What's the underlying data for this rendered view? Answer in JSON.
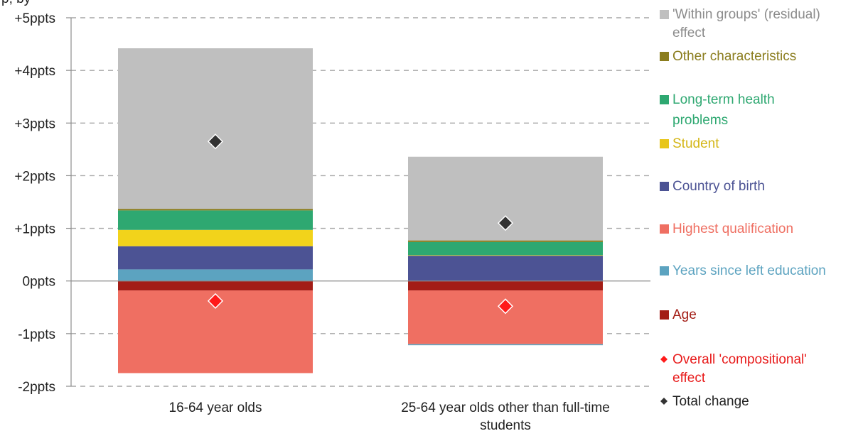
{
  "chart_data": {
    "type": "bar",
    "stacked": true,
    "ylabel": "",
    "y_unit_suffix": "ppts",
    "ylim": [
      -2,
      5
    ],
    "yticks": [
      5,
      4,
      3,
      2,
      1,
      0,
      -1,
      -2
    ],
    "ytick_labels": [
      "+5ppts",
      "+4ppts",
      "+3ppts",
      "+2ppts",
      "+1ppts",
      "0ppts",
      "-1ppts",
      "-2ppts"
    ],
    "grid": true,
    "legend_position": "right",
    "categories": [
      [
        "16-64 year olds"
      ],
      [
        "25-64 year olds other than full-time",
        "students"
      ]
    ],
    "series": [
      {
        "name": "Age",
        "color": "#a31d16",
        "values": [
          -0.18,
          -0.18
        ]
      },
      {
        "name": "Highest qualification",
        "color": "#ef6f62",
        "values": [
          -1.57,
          -1.02
        ]
      },
      {
        "name": "Years since left education",
        "color": "#5ca3c0",
        "values": [
          0.22,
          -0.02
        ]
      },
      {
        "name": "Country of birth",
        "color": "#4c5394",
        "values": [
          0.44,
          0.48
        ]
      },
      {
        "name": "Student",
        "color": "#f2d31b",
        "values": [
          0.31,
          0.01
        ]
      },
      {
        "name": "Long-term health problems",
        "color": "#2ea871",
        "values": [
          0.37,
          0.25
        ]
      },
      {
        "name": "Other characteristics",
        "color": "#8b7d1e",
        "values": [
          0.03,
          0.03
        ]
      },
      {
        "name": "'Within groups' (residual) effect",
        "color": "#bfbfbf",
        "values": [
          3.05,
          1.59
        ]
      }
    ],
    "markers": [
      {
        "name": "Overall 'compositional' effect",
        "color": "#ff1a1a",
        "values": [
          -0.38,
          -0.48
        ]
      },
      {
        "name": "Total change",
        "color": "#333333",
        "values": [
          2.65,
          1.1
        ]
      }
    ],
    "top_text": "p, by"
  },
  "legend": [
    {
      "label_lines": [
        "'Within groups' (residual)",
        "effect"
      ],
      "color": "#bfbfbf",
      "text_color": "#8c8c8c",
      "shape": "square"
    },
    {
      "label_lines": [
        "Other characteristics"
      ],
      "color": "#8b7d1e",
      "text_color": "#8b7d1e",
      "shape": "square"
    },
    {
      "label_lines": [
        "Long-term health",
        "problems"
      ],
      "color": "#2ea871",
      "text_color": "#2ea871",
      "shape": "square"
    },
    {
      "label_lines": [
        "Student"
      ],
      "color": "#e8c61a",
      "text_color": "#d4b617",
      "shape": "square"
    },
    {
      "label_lines": [
        "Country of birth"
      ],
      "color": "#4c5394",
      "text_color": "#4c5394",
      "shape": "square"
    },
    {
      "label_lines": [
        "Highest qualification"
      ],
      "color": "#ef6f62",
      "text_color": "#ef6f62",
      "shape": "square"
    },
    {
      "label_lines": [
        "Years since left education"
      ],
      "color": "#5ca3c0",
      "text_color": "#5ca3c0",
      "shape": "square"
    },
    {
      "label_lines": [
        "Age"
      ],
      "color": "#a31d16",
      "text_color": "#a31d16",
      "shape": "square"
    },
    {
      "label_lines": [
        "Overall 'compositional'",
        "effect"
      ],
      "color": "#ff1a1a",
      "text_color": "#e81c1c",
      "shape": "diamond"
    },
    {
      "label_lines": [
        "Total change"
      ],
      "color": "#333333",
      "text_color": "#222222",
      "shape": "diamond"
    }
  ]
}
